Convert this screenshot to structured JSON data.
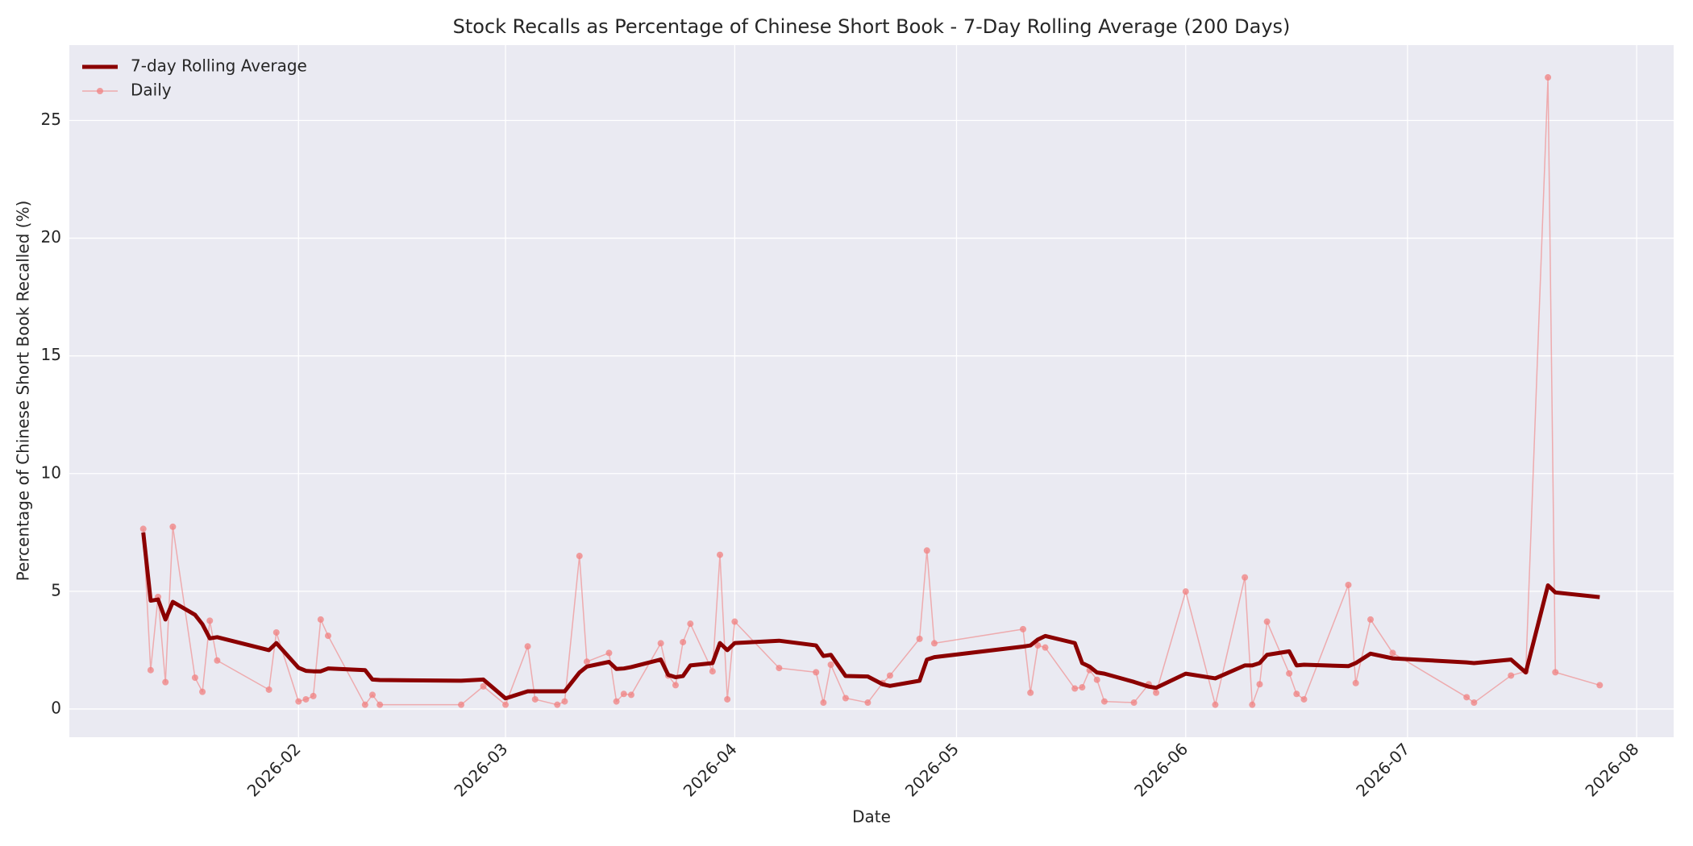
{
  "chart_data": {
    "type": "line",
    "title": "Stock Recalls as Percentage of Chinese Short Book - 7-Day Rolling Average (200 Days)",
    "xlabel": "Date",
    "ylabel": "Percentage of Chinese Short Book Recalled (%)",
    "x": [
      "2026-01-11",
      "2026-01-12",
      "2026-01-13",
      "2026-01-14",
      "2026-01-15",
      "2026-01-18",
      "2026-01-19",
      "2026-01-20",
      "2026-01-21",
      "2026-01-28",
      "2026-01-29",
      "2026-02-01",
      "2026-02-02",
      "2026-02-03",
      "2026-02-04",
      "2026-02-05",
      "2026-02-10",
      "2026-02-11",
      "2026-02-12",
      "2026-02-23",
      "2026-02-26",
      "2026-03-01",
      "2026-03-04",
      "2026-03-05",
      "2026-03-08",
      "2026-03-09",
      "2026-03-11",
      "2026-03-12",
      "2026-03-15",
      "2026-03-16",
      "2026-03-17",
      "2026-03-18",
      "2026-03-22",
      "2026-03-23",
      "2026-03-24",
      "2026-03-25",
      "2026-03-26",
      "2026-03-29",
      "2026-03-30",
      "2026-03-31",
      "2026-04-01",
      "2026-04-07",
      "2026-04-12",
      "2026-04-13",
      "2026-04-14",
      "2026-04-16",
      "2026-04-19",
      "2026-04-21",
      "2026-04-22",
      "2026-04-26",
      "2026-04-27",
      "2026-04-28",
      "2026-05-10",
      "2026-05-11",
      "2026-05-12",
      "2026-05-13",
      "2026-05-17",
      "2026-05-18",
      "2026-05-19",
      "2026-05-20",
      "2026-05-21",
      "2026-05-25",
      "2026-05-27",
      "2026-05-28",
      "2026-06-01",
      "2026-06-05",
      "2026-06-09",
      "2026-06-10",
      "2026-06-11",
      "2026-06-12",
      "2026-06-15",
      "2026-06-16",
      "2026-06-17",
      "2026-06-23",
      "2026-06-24",
      "2026-06-26",
      "2026-06-29",
      "2026-07-09",
      "2026-07-10",
      "2026-07-15",
      "2026-07-17",
      "2026-07-20",
      "2026-07-21",
      "2026-07-27"
    ],
    "series": [
      {
        "name": "7-day Rolling Average",
        "color": "#8b0000",
        "line_width": 5,
        "marker": false,
        "values": [
          7.5,
          4.6,
          4.65,
          3.8,
          4.55,
          4.0,
          3.6,
          3.0,
          3.05,
          2.5,
          2.8,
          1.75,
          1.62,
          1.6,
          1.6,
          1.72,
          1.65,
          1.25,
          1.23,
          1.2,
          1.25,
          0.45,
          0.75,
          0.75,
          0.75,
          0.75,
          1.55,
          1.8,
          2.0,
          1.7,
          1.72,
          1.78,
          2.1,
          1.45,
          1.35,
          1.4,
          1.85,
          1.95,
          2.8,
          2.5,
          2.8,
          2.9,
          2.7,
          2.25,
          2.3,
          1.4,
          1.38,
          1.05,
          0.98,
          1.2,
          2.1,
          2.2,
          2.65,
          2.7,
          2.95,
          3.1,
          2.8,
          1.95,
          1.8,
          1.55,
          1.5,
          1.15,
          0.95,
          0.9,
          1.5,
          1.3,
          1.85,
          1.85,
          1.95,
          2.3,
          2.45,
          1.85,
          1.88,
          1.82,
          1.95,
          2.35,
          2.15,
          1.98,
          1.95,
          2.1,
          1.55,
          5.25,
          4.95,
          4.75
        ]
      },
      {
        "name": "Daily",
        "color": "#f08080",
        "line_width": 1.5,
        "marker": true,
        "values": [
          7.65,
          1.65,
          4.76,
          1.14,
          7.74,
          1.33,
          0.73,
          3.75,
          2.06,
          0.82,
          3.25,
          0.32,
          0.41,
          0.55,
          3.8,
          3.11,
          0.18,
          0.6,
          0.18,
          0.18,
          0.96,
          0.18,
          2.66,
          0.41,
          0.18,
          0.32,
          6.5,
          2.01,
          2.38,
          0.32,
          0.64,
          0.6,
          2.79,
          1.42,
          1.01,
          2.84,
          3.62,
          1.6,
          6.55,
          0.41,
          3.71,
          1.74,
          1.56,
          0.27,
          1.88,
          0.46,
          0.27,
          1.1,
          1.42,
          2.98,
          6.73,
          2.79,
          3.39,
          0.69,
          2.7,
          2.61,
          0.87,
          0.92,
          1.65,
          1.24,
          0.32,
          0.27,
          1.05,
          0.69,
          4.99,
          0.18,
          5.59,
          0.18,
          1.05,
          3.71,
          1.51,
          0.64,
          0.41,
          5.27,
          1.1,
          3.8,
          2.38,
          0.5,
          0.27,
          1.42,
          1.6,
          26.83,
          1.56,
          1.01
        ]
      }
    ],
    "xlim": [
      "2026-01-01",
      "2026-08-06"
    ],
    "xticks": [
      {
        "value": "2026-02-01",
        "label": "2026-02"
      },
      {
        "value": "2026-03-01",
        "label": "2026-03"
      },
      {
        "value": "2026-04-01",
        "label": "2026-04"
      },
      {
        "value": "2026-05-01",
        "label": "2026-05"
      },
      {
        "value": "2026-06-01",
        "label": "2026-06"
      },
      {
        "value": "2026-07-01",
        "label": "2026-07"
      },
      {
        "value": "2026-08-01",
        "label": "2026-08"
      }
    ],
    "ylim": [
      -1.2,
      28.2
    ],
    "yticks": [
      0,
      5,
      10,
      15,
      20,
      25
    ],
    "grid": true,
    "legend": "upper-left"
  }
}
